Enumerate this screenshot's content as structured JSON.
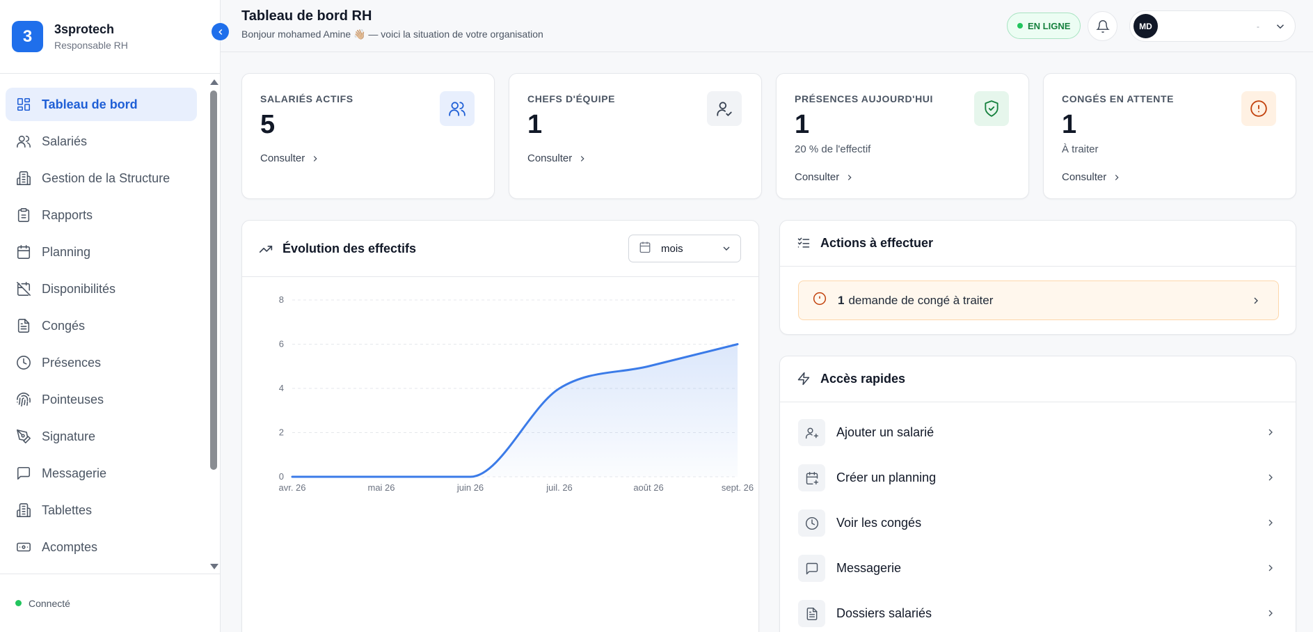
{
  "brand": {
    "logo_letter": "3",
    "name": "3sprotech",
    "role": "Responsable RH",
    "color": "#1f6feb"
  },
  "sidebar": {
    "items": [
      {
        "label": "Tableau de bord",
        "icon": "dashboard-icon",
        "active": true
      },
      {
        "label": "Salariés",
        "icon": "users-icon"
      },
      {
        "label": "Gestion de la Structure",
        "icon": "building-icon"
      },
      {
        "label": "Rapports",
        "icon": "clipboard-icon"
      },
      {
        "label": "Planning",
        "icon": "calendar-icon"
      },
      {
        "label": "Disponibilités",
        "icon": "calendar-off-icon"
      },
      {
        "label": "Congés",
        "icon": "document-icon"
      },
      {
        "label": "Présences",
        "icon": "clock-icon"
      },
      {
        "label": "Pointeuses",
        "icon": "fingerprint-icon"
      },
      {
        "label": "Signature",
        "icon": "pen-tool-icon"
      },
      {
        "label": "Messagerie",
        "icon": "message-icon"
      },
      {
        "label": "Tablettes",
        "icon": "building-icon"
      },
      {
        "label": "Acomptes",
        "icon": "banknote-icon"
      }
    ],
    "status": "Connecté"
  },
  "header": {
    "title": "Tableau de bord RH",
    "subtitle": "Bonjour mohamed Amine 👋🏼 — voici la situation de votre organisation",
    "online_label": "EN LIGNE",
    "avatar_initials": "MD",
    "user_name": "-"
  },
  "stats": [
    {
      "label": "SALARIÉS ACTIFS",
      "value": "5",
      "note": "",
      "link": "Consulter",
      "icon": "users-icon",
      "icon_color": "#1f5fd6",
      "icon_bg": "#e8effd"
    },
    {
      "label": "CHEFS D'ÉQUIPE",
      "value": "1",
      "note": "",
      "link": "Consulter",
      "icon": "user-check-icon",
      "icon_color": "#374151",
      "icon_bg": "#f1f3f6"
    },
    {
      "label": "PRÉSENCES AUJOURD'HUI",
      "value": "1",
      "note": "20 % de l'effectif",
      "link": "Consulter",
      "icon": "shield-check-icon",
      "icon_color": "#15803d",
      "icon_bg": "#e6f6ec"
    },
    {
      "label": "CONGÉS EN ATTENTE",
      "value": "1",
      "note": "À traiter",
      "link": "Consulter",
      "icon": "alert-circle-icon",
      "icon_color": "#c2410c",
      "icon_bg": "#fff1e3"
    }
  ],
  "chart_panel": {
    "title": "Évolution des effectifs",
    "period": "mois"
  },
  "chart_data": {
    "type": "area",
    "categories": [
      "avr. 26",
      "mai 26",
      "juin 26",
      "juil. 26",
      "août 26",
      "sept. 26"
    ],
    "series": [
      {
        "values": [
          0,
          0,
          0,
          4,
          5,
          6
        ]
      }
    ],
    "yticks": [
      0,
      2,
      4,
      6,
      8
    ],
    "ylim": [
      0,
      8
    ],
    "grid": true,
    "line_color": "#3b7be8"
  },
  "actions": {
    "title": "Actions à effectuer",
    "alert_count": "1",
    "alert_text": "demande de congé à traiter"
  },
  "quick_access": {
    "title": "Accès rapides",
    "items": [
      {
        "label": "Ajouter un salarié",
        "icon": "user-plus-icon"
      },
      {
        "label": "Créer un planning",
        "icon": "calendar-plus-icon"
      },
      {
        "label": "Voir les congés",
        "icon": "clock-icon"
      },
      {
        "label": "Messagerie",
        "icon": "message-icon"
      },
      {
        "label": "Dossiers salariés",
        "icon": "document-icon"
      }
    ]
  }
}
